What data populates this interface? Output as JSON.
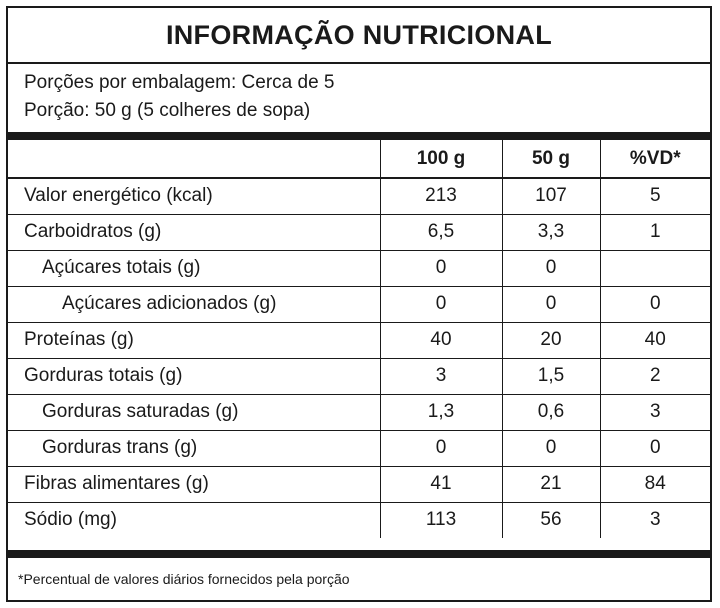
{
  "title": "INFORMAÇÃO NUTRICIONAL",
  "servings_per_package": "Porções por embalagem: Cerca de 5",
  "serving_size": "Porção: 50 g (5 colheres de sopa)",
  "columns": [
    "",
    "100 g",
    "50 g",
    "%VD*"
  ],
  "rows": [
    {
      "name": "Valor energético (kcal)",
      "per_100g": "213",
      "per_serving": "107",
      "dv": "5"
    },
    {
      "name": "Carboidratos (g)",
      "per_100g": "6,5",
      "per_serving": "3,3",
      "dv": "1"
    },
    {
      "name": "Açúcares totais (g)",
      "per_100g": "0",
      "per_serving": "0",
      "dv": ""
    },
    {
      "name": "Açúcares adicionados (g)",
      "per_100g": "0",
      "per_serving": "0",
      "dv": "0"
    },
    {
      "name": "Proteínas (g)",
      "per_100g": "40",
      "per_serving": "20",
      "dv": "40"
    },
    {
      "name": "Gorduras totais (g)",
      "per_100g": "3",
      "per_serving": "1,5",
      "dv": "2"
    },
    {
      "name": "Gorduras saturadas (g)",
      "per_100g": "1,3",
      "per_serving": "0,6",
      "dv": "3"
    },
    {
      "name": "Gorduras trans (g)",
      "per_100g": "0",
      "per_serving": "0",
      "dv": "0"
    },
    {
      "name": "Fibras alimentares (g)",
      "per_100g": "41",
      "per_serving": "21",
      "dv": "84"
    },
    {
      "name": "Sódio (mg)",
      "per_100g": "113",
      "per_serving": "56",
      "dv": "3"
    }
  ],
  "footnote": "*Percentual de valores diários fornecidos pela porção"
}
